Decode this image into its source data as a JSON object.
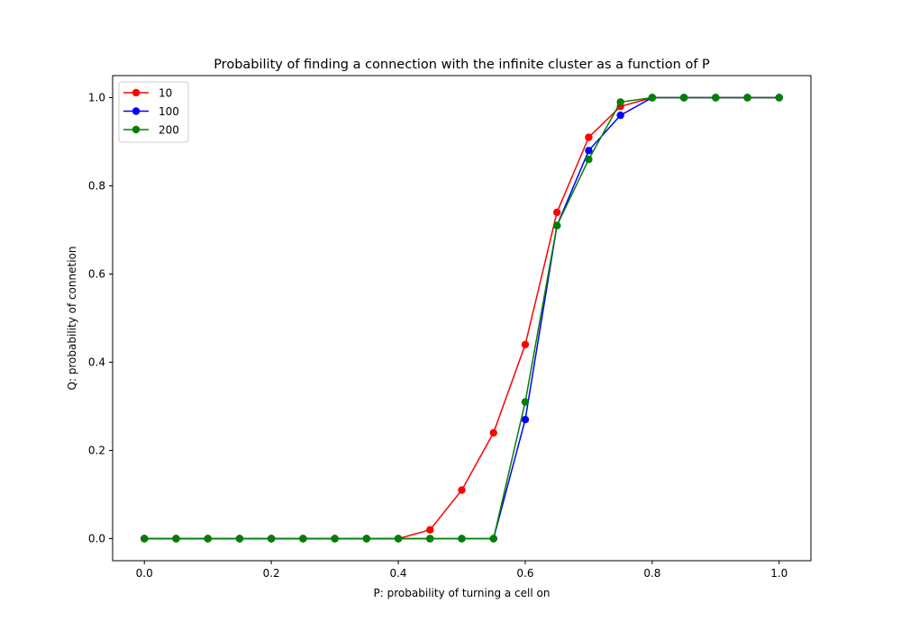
{
  "chart_data": {
    "type": "line",
    "title": "Probability of finding a connection with the infinite cluster as a function of P",
    "xlabel": "P: probability of turning a cell on",
    "ylabel": "Q: probability of connetion",
    "xlim": [
      -0.05,
      1.05
    ],
    "ylim": [
      -0.05,
      1.05
    ],
    "xticks": [
      0.0,
      0.2,
      0.4,
      0.6,
      0.8,
      1.0
    ],
    "yticks": [
      0.0,
      0.2,
      0.4,
      0.6,
      0.8,
      1.0
    ],
    "grid": false,
    "legend_position": "top-left",
    "x": [
      0.0,
      0.05,
      0.1,
      0.15,
      0.2,
      0.25,
      0.3,
      0.35,
      0.4,
      0.45,
      0.5,
      0.55,
      0.6,
      0.65,
      0.7,
      0.75,
      0.8,
      0.85,
      0.9,
      0.95,
      1.0
    ],
    "series": [
      {
        "name": "10",
        "color": "#ff0000",
        "values": [
          0,
          0,
          0,
          0,
          0,
          0,
          0,
          0,
          0,
          0.02,
          0.11,
          0.24,
          0.44,
          0.74,
          0.91,
          0.98,
          1.0,
          1.0,
          1.0,
          1.0,
          1.0
        ]
      },
      {
        "name": "100",
        "color": "#0000ff",
        "values": [
          0,
          0,
          0,
          0,
          0,
          0,
          0,
          0,
          0,
          0,
          0,
          0,
          0.27,
          0.71,
          0.88,
          0.96,
          1.0,
          1.0,
          1.0,
          1.0,
          1.0
        ]
      },
      {
        "name": "200",
        "color": "#008000",
        "values": [
          0,
          0,
          0,
          0,
          0,
          0,
          0,
          0,
          0,
          0,
          0,
          0,
          0.31,
          0.71,
          0.86,
          0.99,
          1.0,
          1.0,
          1.0,
          1.0,
          1.0
        ]
      }
    ]
  }
}
